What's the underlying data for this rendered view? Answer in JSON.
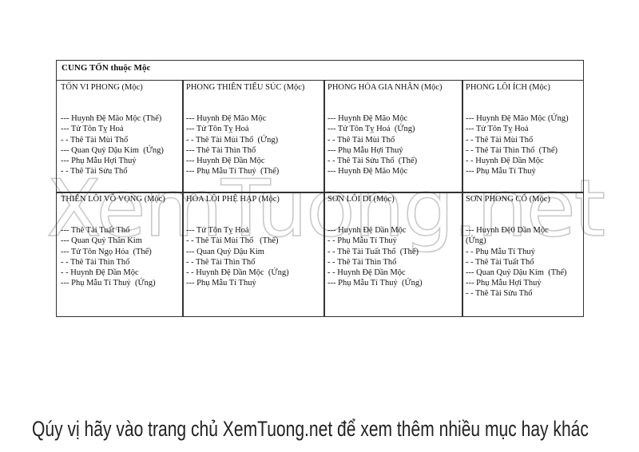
{
  "table": {
    "title": "CUNG TỐN thuộc Mộc",
    "cells": [
      {
        "head": "TỐN VI PHONG (Mộc)",
        "lines": [
          "--- Huynh Đệ Mão Mộc (Thế)",
          "--- Tử Tôn Tỵ Hoả",
          "- - Thê Tài Mùi Thổ",
          "--- Quan Quỷ Dậu Kim  (Ứng)",
          "--- Phụ Mẫu Hợi Thuỷ",
          "- - Thê Tài Sửu Thổ"
        ]
      },
      {
        "head": "PHONG THIÊN TIỂU SÚC (Mộc)",
        "lines": [
          "--- Huynh Đệ Mão Mộc",
          "--- Tử Tôn Tỵ Hoả",
          "- - Thê Tài Mùi Thổ  (Ứng)",
          "--- Thê Tài Thìn Thổ",
          "--- Huynh Đệ Dần Mộc",
          "--- Phụ Mẫu Tí Thuỷ  (Thế)"
        ]
      },
      {
        "head": "PHONG HỎA GIA NHÂN (Mộc)",
        "lines": [
          "--- Huynh Đệ Mão Mộc",
          "--- Tử Tôn Tỵ Hoả  (Ứng)",
          "- - Thê Tài Mùi Thổ",
          "--- Phụ Mẫu Hợi Thuỷ",
          "- - Thê Tài Sửu Thổ  (Thế)",
          "--- Huynh Đệ Mão Mộc"
        ]
      },
      {
        "head": "PHONG LÔI ÍCH (Mộc)",
        "lines": [
          "--- Huynh Đệ Mão Mộc (Ứng)",
          "--- Tử Tôn Tỵ Hoả",
          "- - Thê Tài Mùi Thổ",
          "- - Thê Tài Thìn Thổ  (Thế)",
          "- - Huynh Đệ Dần Mộc",
          "--- Phụ Mẫu Tí Thuỷ"
        ]
      },
      {
        "head": "THIÊN LÔI VÔ VỌNG (Mộc)",
        "lines": [
          "--- Thê Tài Tuất Thổ",
          "--- Quan Quỷ Thân Kim",
          "--- Tử Tôn Ngọ Hỏa  (Thế)",
          "- - Thê Tài Thìn Thổ",
          "- - Huynh Đệ Dần Mộc",
          "--- Phụ Mẫu Tí Thuỷ  (Ứng)"
        ]
      },
      {
        "head": "HỎA LÔI PHỆ HẠP (Mộc)",
        "lines": [
          "--- Tử Tôn Tỵ Hoả",
          "- - Thê Tài Mùi Thổ   (Thế)",
          "--- Quan Quỷ Dậu Kim",
          "- - Thê Tài Thìn Thổ",
          "- - Huynh Đệ Dần Mộc  (Ứng)",
          "--- Phụ Mẫu Tí Thuỷ"
        ]
      },
      {
        "head": "SƠN LÔI DI (Mộc)",
        "lines": [
          "--- Huynh Đệ Dần Mộc",
          "- - Phụ Mẫu Tí Thuỷ",
          "- - Thê Tài Tuất Thổ  (Thế)",
          "- - Thê Tài Thìn Thổ",
          "- - Huynh Đệ Dần Mộc",
          "--- Phụ Mẫu Tí Thuỷ  (Ứng)"
        ]
      },
      {
        "head": "SƠN PHONG CỔ (Mộc)",
        "lines": [
          "--- Huynh Đệ0 Dần Mộc",
          "(Ứng)",
          "- - Phụ Mẫu Tí Thuỷ",
          "- - Thê Tài Tuất Thổ",
          "--- Quan Quỷ Dậu Kim  (Thế)",
          "--- Phụ Mẫu Hợi Thuỷ",
          "- - Thê Tài Sửu Thổ"
        ]
      }
    ]
  },
  "watermark": "XemTuong.net",
  "footer": "Qúy vị hãy vào trang chủ XemTuong.net để xem thêm nhiều mục hay khác"
}
